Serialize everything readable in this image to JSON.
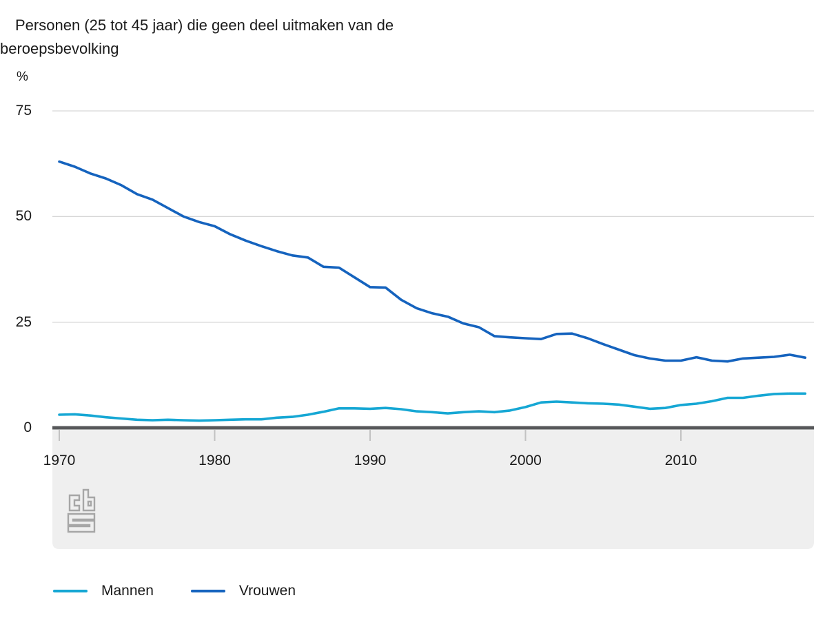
{
  "chart": {
    "title": "Personen (25 tot 45 jaar) die geen deel uitmaken van de beroepsbevolking",
    "title_line1": "Personen (25 tot 45 jaar) die geen deel uitmaken van de",
    "title_line2": "beroepsbevolking",
    "unit": "%"
  },
  "branding": {
    "logo": "cbs-logo",
    "logo_color": "#a6a6a6"
  },
  "colors": {
    "mannen": "#16a7d4",
    "vrouwen": "#1563be",
    "gridline": "#d6d6d6",
    "zero_axis": "#57585a",
    "axis_band": "#efefef",
    "tick_mark": "#c2c2c2",
    "text": "#1a1a1a"
  },
  "chart_data": {
    "type": "line",
    "title": "Personen (25 tot 45 jaar) die geen deel uitmaken van de beroepsbevolking",
    "xlabel": "",
    "ylabel": "%",
    "x_ticks": [
      1970,
      1980,
      1990,
      2000,
      2010
    ],
    "y_ticks": [
      0,
      25,
      50,
      75
    ],
    "ylim": [
      0,
      78.5
    ],
    "xlim": [
      1969.5,
      2018.6
    ],
    "grid": "horizontal",
    "legend_position": "bottom-left",
    "years": [
      1970,
      1971,
      1972,
      1973,
      1974,
      1975,
      1976,
      1977,
      1978,
      1979,
      1980,
      1981,
      1982,
      1983,
      1984,
      1985,
      1986,
      1987,
      1988,
      1989,
      1990,
      1991,
      1992,
      1993,
      1994,
      1995,
      1996,
      1997,
      1998,
      1999,
      2000,
      2001,
      2002,
      2003,
      2004,
      2005,
      2006,
      2007,
      2008,
      2009,
      2010,
      2011,
      2012,
      2013,
      2014,
      2015,
      2016,
      2017,
      2018
    ],
    "series": [
      {
        "name": "Mannen",
        "color": "#16a7d4",
        "values": [
          3.1,
          3.2,
          2.9,
          2.5,
          2.2,
          1.9,
          1.8,
          1.9,
          1.8,
          1.7,
          1.8,
          1.9,
          2.0,
          2.0,
          2.4,
          2.6,
          3.1,
          3.8,
          4.6,
          4.6,
          4.5,
          4.7,
          4.4,
          3.9,
          3.7,
          3.4,
          3.7,
          3.9,
          3.7,
          4.1,
          4.9,
          6.0,
          6.2,
          6.0,
          5.8,
          5.7,
          5.5,
          5.0,
          4.5,
          4.7,
          5.4,
          5.7,
          6.3,
          7.1,
          7.1,
          7.6,
          8.0,
          8.1,
          8.1
        ]
      },
      {
        "name": "Vrouwen",
        "color": "#1563be",
        "values": [
          63.0,
          61.8,
          60.2,
          59.0,
          57.4,
          55.3,
          54.0,
          52.0,
          50.0,
          48.7,
          47.7,
          45.8,
          44.3,
          43.0,
          41.8,
          40.8,
          40.3,
          38.1,
          37.9,
          35.6,
          33.3,
          33.2,
          30.3,
          28.3,
          27.1,
          26.3,
          24.7,
          23.8,
          21.7,
          21.4,
          21.2,
          21.0,
          22.2,
          22.3,
          21.2,
          19.8,
          18.5,
          17.2,
          16.4,
          15.9,
          15.9,
          16.7,
          15.9,
          15.7,
          16.4,
          16.6,
          16.8,
          17.3,
          16.6
        ]
      }
    ]
  },
  "legend": {
    "items": [
      {
        "label": "Mannen"
      },
      {
        "label": "Vrouwen"
      }
    ]
  }
}
